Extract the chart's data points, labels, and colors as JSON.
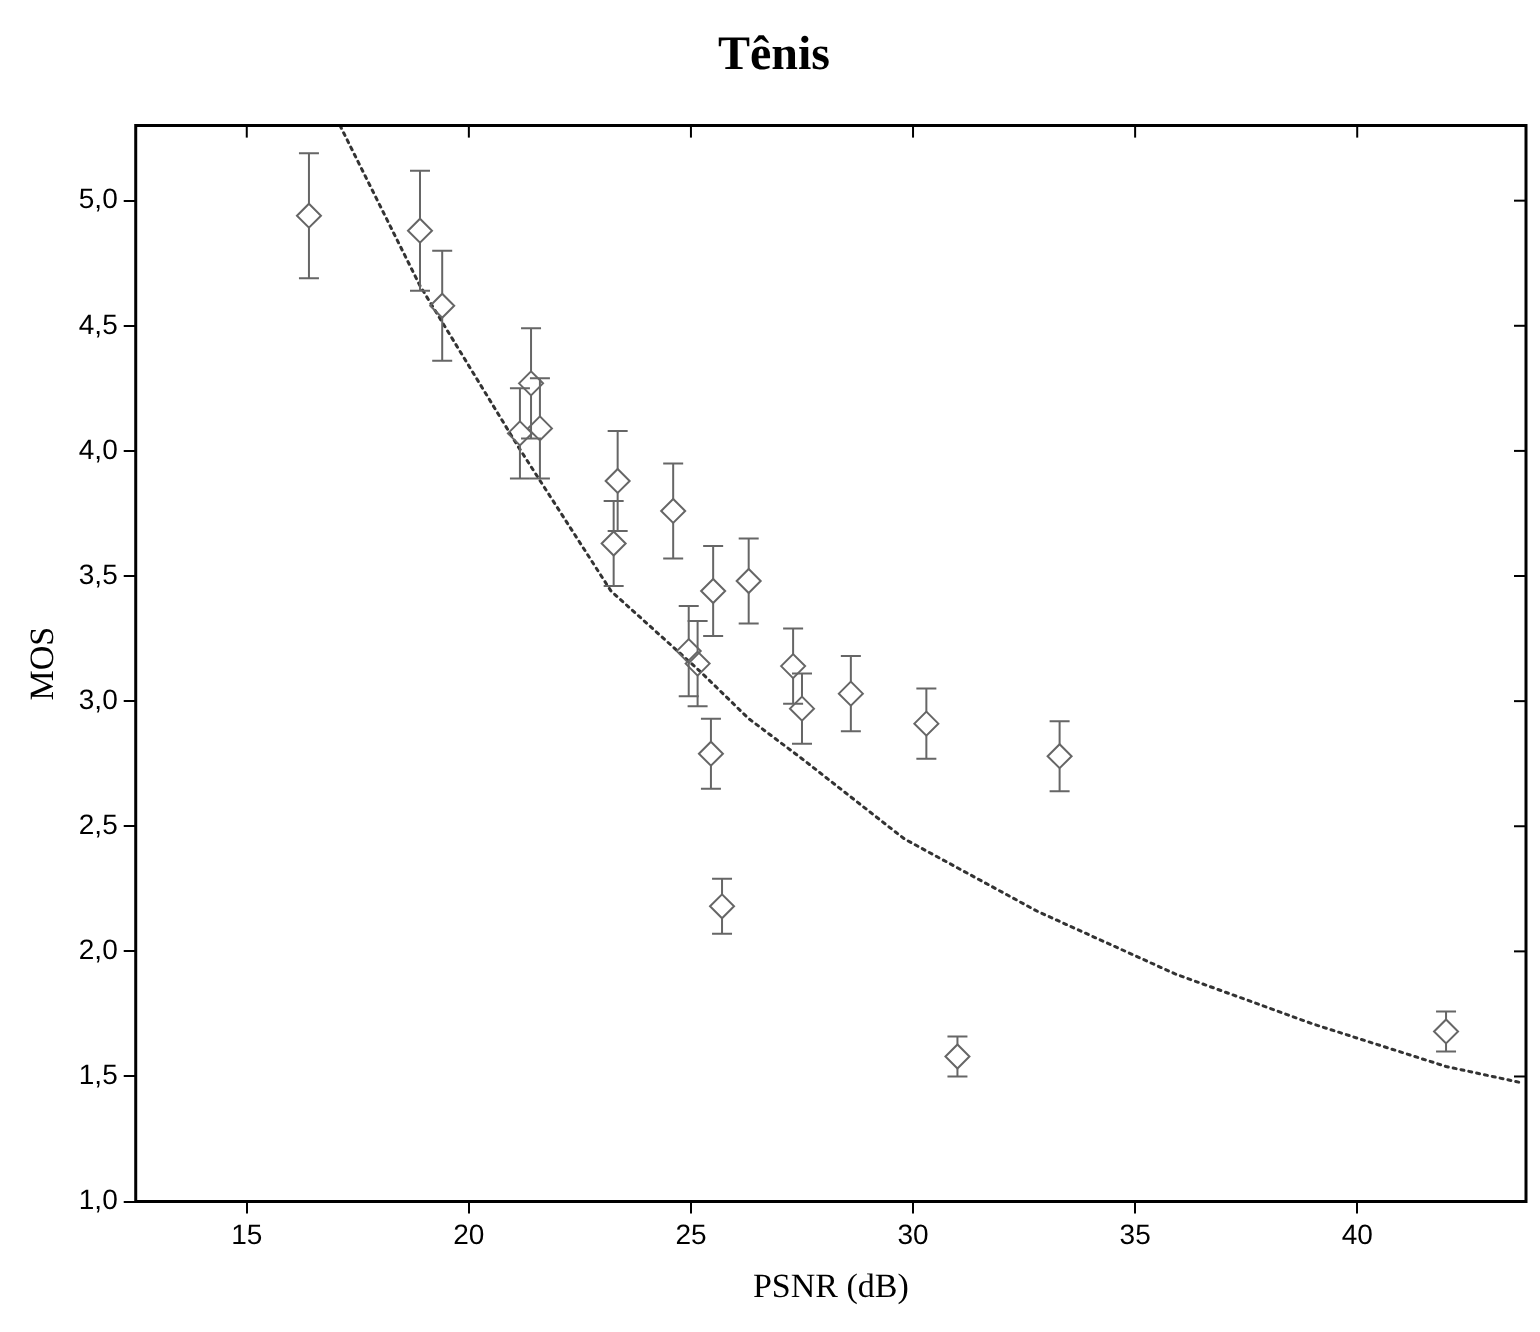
{
  "chart_data": {
    "type": "scatter",
    "title": "Tênis",
    "xlabel": "PSNR (dB)",
    "ylabel": "MOS",
    "xlim": [
      12.5,
      43.8
    ],
    "xticks": [
      15,
      20,
      25,
      30,
      35,
      40
    ],
    "ylim": [
      1.0,
      5.3
    ],
    "yticks": [
      {
        "value": 1.0,
        "label": "1,0"
      },
      {
        "value": 1.5,
        "label": "1,5"
      },
      {
        "value": 2.0,
        "label": "2,0"
      },
      {
        "value": 2.5,
        "label": "2,5"
      },
      {
        "value": 3.0,
        "label": "3,0"
      },
      {
        "value": 3.5,
        "label": "3,5"
      },
      {
        "value": 4.0,
        "label": "4,0"
      },
      {
        "value": 4.5,
        "label": "4,5"
      },
      {
        "value": 5.0,
        "label": "5,0"
      }
    ],
    "grid": false,
    "legend": false,
    "marker": "diamond",
    "series": [
      {
        "color": "#666666",
        "x": [
          16.4,
          18.9,
          19.4,
          21.4,
          21.15,
          21.6,
          23.35,
          23.26,
          24.6,
          25.5,
          26.3,
          24.95,
          25.15,
          27.3,
          27.5,
          28.6,
          30.3,
          33.3,
          25.45,
          25.7,
          31.0,
          42.0
        ],
        "values": [
          4.94,
          4.88,
          4.58,
          4.27,
          4.07,
          4.09,
          3.88,
          3.63,
          3.76,
          3.44,
          3.48,
          3.2,
          3.15,
          3.14,
          2.97,
          3.03,
          2.91,
          2.78,
          2.79,
          2.18,
          1.58,
          1.68
        ],
        "errors": [
          0.25,
          0.24,
          0.22,
          0.22,
          0.18,
          0.2,
          0.2,
          0.17,
          0.19,
          0.18,
          0.17,
          0.18,
          0.17,
          0.15,
          0.14,
          0.15,
          0.14,
          0.14,
          0.14,
          0.11,
          0.08,
          0.08
        ]
      },
      {
        "type": "line",
        "color": "#333333",
        "line_style": "dotted",
        "marker": "none",
        "x": [
          17.1,
          18.9,
          21.1,
          23.2,
          25.2,
          26.3,
          27.5,
          29.8,
          32.8,
          35.9,
          39.0,
          42.0,
          43.7
        ],
        "values": [
          5.3,
          4.66,
          4.02,
          3.44,
          3.12,
          2.93,
          2.77,
          2.45,
          2.16,
          1.91,
          1.71,
          1.54,
          1.475
        ]
      }
    ]
  }
}
